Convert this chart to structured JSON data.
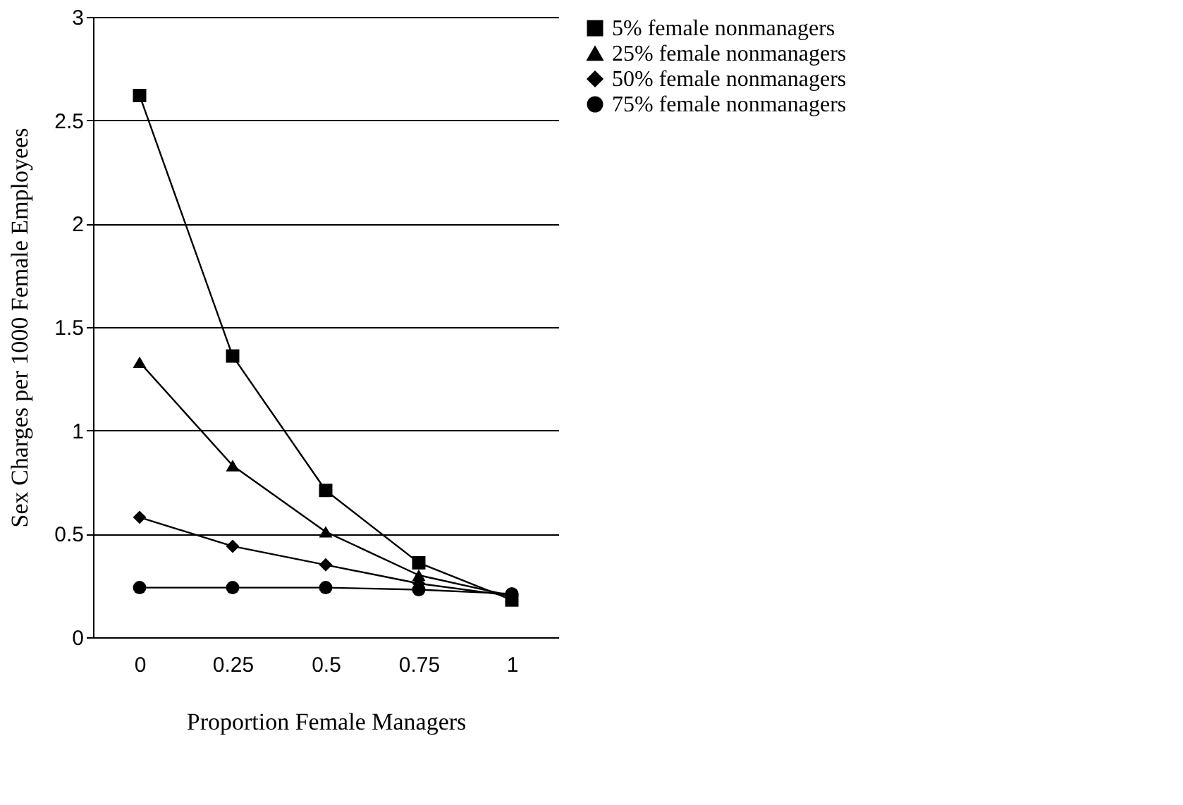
{
  "chart_data": {
    "type": "line",
    "xlabel": "Proportion Female Managers",
    "ylabel": "Sex Charges per 1000 Female Employees",
    "categories": [
      "0",
      "0.25",
      "0.5",
      "0.75",
      "1"
    ],
    "series": [
      {
        "name": "5% female nonmanagers",
        "color": "#000000",
        "marker": "square",
        "values": [
          2.62,
          1.36,
          0.71,
          0.36,
          0.18
        ]
      },
      {
        "name": "25% female nonmanagers",
        "color": "#000000",
        "marker": "triangle",
        "values": [
          1.33,
          0.83,
          0.51,
          0.3,
          0.2
        ]
      },
      {
        "name": "50% female nonmanagers",
        "color": "#000000",
        "marker": "diamond",
        "values": [
          0.58,
          0.44,
          0.35,
          0.26,
          0.2
        ]
      },
      {
        "name": "75% female nonmanagers",
        "color": "#000000",
        "marker": "circle",
        "values": [
          0.24,
          0.24,
          0.24,
          0.23,
          0.21
        ]
      }
    ],
    "ylim": [
      0,
      3
    ],
    "yticks": [
      {
        "value": 0,
        "label": "0"
      },
      0.5,
      {
        "value": 1,
        "label": "1"
      },
      1.5,
      {
        "value": 2,
        "label": "2"
      },
      2.5,
      {
        "value": 3,
        "label": "3"
      }
    ],
    "grid": "y",
    "legend": "right",
    "line_style": "solid"
  }
}
